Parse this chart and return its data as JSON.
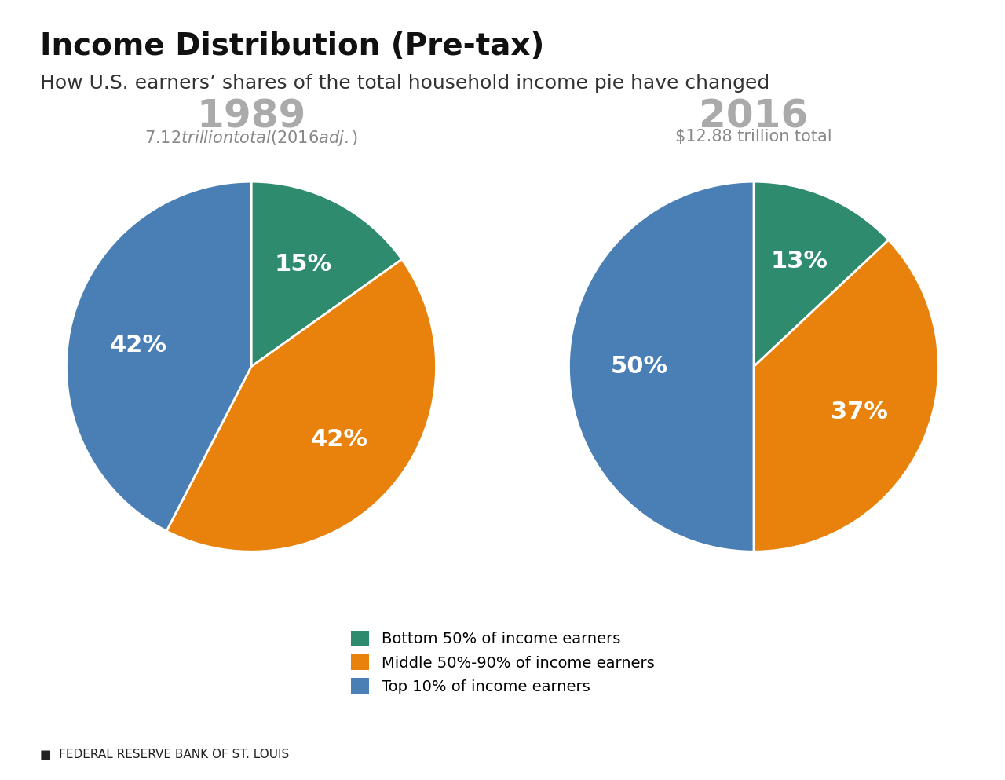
{
  "title": "Income Distribution (Pre-tax)",
  "subtitle": "How U.S. earners’ shares of the total household income pie have changed",
  "title_fontsize": 28,
  "subtitle_fontsize": 18,
  "chart1": {
    "year": "1989",
    "total": "$7.12 trillion total (2016 adj. $)",
    "values": [
      15,
      42,
      42
    ],
    "labels": [
      "15%",
      "42%",
      "42%"
    ],
    "colors": [
      "#2e8b6e",
      "#e8820c",
      "#4a7fb5"
    ],
    "startangle": 90
  },
  "chart2": {
    "year": "2016",
    "total": "$12.88 trillion total",
    "values": [
      13,
      37,
      50
    ],
    "labels": [
      "13%",
      "37%",
      "50%"
    ],
    "colors": [
      "#2e8b6e",
      "#e8820c",
      "#4a7fb5"
    ],
    "startangle": 90
  },
  "legend_labels": [
    "Bottom 50% of income earners",
    "Middle 50%-90% of income earners",
    "Top 10% of income earners"
  ],
  "legend_colors": [
    "#2e8b6e",
    "#e8820c",
    "#4a7fb5"
  ],
  "footer": "FEDERAL RESERVE BANK OF ST. LOUIS",
  "year_color": "#aaaaaa",
  "total_color": "#888888",
  "label_fontsize": 22,
  "year_fontsize": 36,
  "total_fontsize": 15,
  "background_color": "#ffffff"
}
